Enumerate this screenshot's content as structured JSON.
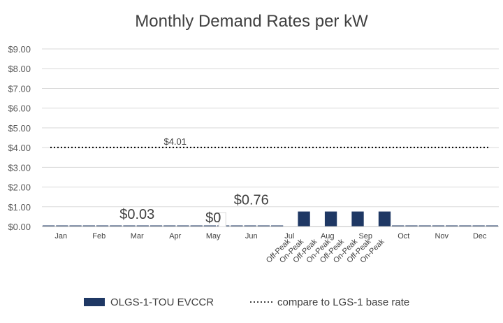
{
  "chart_data": {
    "type": "bar",
    "title": "Monthly Demand Rates per kW",
    "xlabel": "",
    "ylabel": "",
    "ylim": [
      0,
      9
    ],
    "yticks": [
      "$0.00",
      "$1.00",
      "$2.00",
      "$3.00",
      "$4.00",
      "$5.00",
      "$6.00",
      "$7.00",
      "$8.00",
      "$9.00"
    ],
    "grid": true,
    "months": [
      "Jan",
      "Feb",
      "Mar",
      "Apr",
      "May",
      "Jun",
      "Jul",
      "Aug",
      "Sep",
      "Oct",
      "Nov",
      "Dec"
    ],
    "period_labels": [
      "Off-Peak",
      "On-Peak",
      "Off-Peak",
      "On-Peak",
      "Off-Peak",
      "On-Peak",
      "Off-Peak",
      "On-Peak"
    ],
    "series": [
      {
        "name": "OLGS-1-TOU EVCCR",
        "type": "bar",
        "color": "#1f3864",
        "values": [
          0.03,
          0.03,
          0.03,
          0.03,
          0.03,
          0.03,
          0.03,
          0.03,
          0.03,
          0.03,
          0.03,
          0.03,
          0.03,
          0.03,
          0.03,
          0.03,
          0.03,
          0.03,
          0,
          0.76,
          0,
          0.76,
          0,
          0.76,
          0,
          0.76,
          0.03,
          0.03,
          0.03,
          0.03,
          0.03,
          0.03,
          0.03,
          0.03
        ]
      },
      {
        "name": "compare to LGS-1 base rate",
        "type": "line",
        "style": "dotted",
        "color": "#000000",
        "value": 4.01
      }
    ],
    "annotations": [
      {
        "text": "$4.01",
        "month": "Apr",
        "y": 4.01
      },
      {
        "text": "$0.03",
        "month": "Mar",
        "y": 0.03
      },
      {
        "text": "$0",
        "month": "May",
        "y": 0
      },
      {
        "text": "$0.76",
        "month": "Jun",
        "y": 0.76
      }
    ],
    "legend_position": "bottom"
  }
}
